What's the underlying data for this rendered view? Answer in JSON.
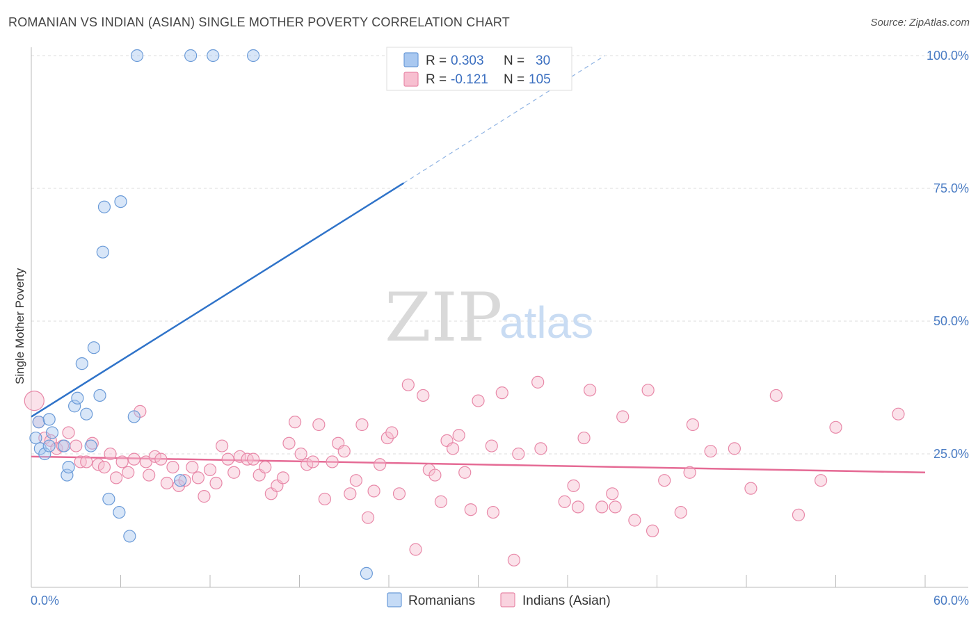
{
  "title": "ROMANIAN VS INDIAN (ASIAN) SINGLE MOTHER POVERTY CORRELATION CHART",
  "source": "Source: ZipAtlas.com",
  "watermark": {
    "zip": "ZIP",
    "atlas": "atlas"
  },
  "legend": {
    "r_label": "R =",
    "n_label": "N =",
    "rows": [
      {
        "r": "0.303",
        "n": "30",
        "color": "#a9c8f0",
        "stroke": "#6b9bd8"
      },
      {
        "r": "-0.121",
        "n": "105",
        "color": "#f7bfd0",
        "stroke": "#e888a8"
      }
    ]
  },
  "bottom_legend": [
    {
      "label": "Romanians",
      "color": "#c5dbf6",
      "stroke": "#6b9bd8"
    },
    {
      "label": "Indians (Asian)",
      "color": "#f9d3df",
      "stroke": "#e888a8"
    }
  ],
  "chart_data": {
    "type": "scatter",
    "title": "ROMANIAN VS INDIAN (ASIAN) SINGLE MOTHER POVERTY CORRELATION CHART",
    "xlabel": "",
    "ylabel": "Single Mother Poverty",
    "xlim": [
      0,
      60
    ],
    "ylim": [
      0,
      105
    ],
    "x_tick_labels": [
      "0.0%",
      "60.0%"
    ],
    "y_ticks": [
      25,
      50,
      75,
      100
    ],
    "y_tick_labels": [
      "25.0%",
      "50.0%",
      "75.0%",
      "100.0%"
    ],
    "grid": "horizontal dashed",
    "legend_position": "top-center",
    "series": [
      {
        "name": "Romanians",
        "color": "#6b9bd8",
        "fill": "#a9c8f0",
        "points": [
          [
            0.3,
            28.0
          ],
          [
            0.5,
            31.0
          ],
          [
            0.6,
            26.0
          ],
          [
            0.9,
            25.0
          ],
          [
            1.2,
            26.5
          ],
          [
            1.4,
            29.0
          ],
          [
            1.2,
            31.5
          ],
          [
            2.2,
            26.5
          ],
          [
            2.4,
            21.0
          ],
          [
            2.5,
            22.5
          ],
          [
            2.9,
            34.0
          ],
          [
            3.1,
            35.5
          ],
          [
            3.4,
            42.0
          ],
          [
            3.7,
            32.5
          ],
          [
            4.0,
            26.5
          ],
          [
            4.2,
            45.0
          ],
          [
            4.6,
            36.0
          ],
          [
            4.8,
            63.0
          ],
          [
            4.9,
            71.5
          ],
          [
            5.2,
            16.5
          ],
          [
            5.9,
            14.0
          ],
          [
            6.0,
            72.5
          ],
          [
            6.6,
            9.5
          ],
          [
            6.9,
            32.0
          ],
          [
            7.1,
            100.0
          ],
          [
            10.0,
            20.0
          ],
          [
            10.7,
            100.0
          ],
          [
            12.2,
            100.0
          ],
          [
            14.9,
            100.0
          ],
          [
            22.5,
            2.5
          ]
        ]
      },
      {
        "name": "Indians (Asian)",
        "color": "#e888a8",
        "fill": "#f7bfd0",
        "points": [
          [
            0.2,
            35.0
          ],
          [
            0.5,
            31.0
          ],
          [
            0.9,
            28.0
          ],
          [
            1.3,
            27.5
          ],
          [
            1.7,
            26.0
          ],
          [
            2.1,
            26.5
          ],
          [
            2.5,
            29.0
          ],
          [
            3.0,
            26.5
          ],
          [
            3.3,
            23.5
          ],
          [
            3.7,
            23.5
          ],
          [
            4.1,
            27.0
          ],
          [
            4.5,
            23.0
          ],
          [
            4.9,
            22.5
          ],
          [
            5.3,
            25.0
          ],
          [
            5.7,
            20.5
          ],
          [
            6.1,
            23.5
          ],
          [
            6.5,
            21.5
          ],
          [
            6.9,
            24.0
          ],
          [
            7.3,
            33.0
          ],
          [
            7.7,
            23.5
          ],
          [
            7.9,
            21.0
          ],
          [
            8.3,
            24.5
          ],
          [
            8.7,
            24.0
          ],
          [
            9.1,
            19.5
          ],
          [
            9.5,
            22.5
          ],
          [
            9.9,
            19.0
          ],
          [
            10.3,
            20.0
          ],
          [
            10.8,
            22.5
          ],
          [
            11.2,
            20.5
          ],
          [
            11.6,
            17.0
          ],
          [
            12.0,
            22.0
          ],
          [
            12.4,
            19.5
          ],
          [
            12.8,
            26.5
          ],
          [
            13.2,
            24.0
          ],
          [
            13.6,
            21.5
          ],
          [
            14.0,
            24.5
          ],
          [
            14.5,
            24.0
          ],
          [
            14.9,
            24.0
          ],
          [
            15.3,
            21.0
          ],
          [
            15.7,
            22.5
          ],
          [
            16.1,
            17.5
          ],
          [
            16.5,
            19.0
          ],
          [
            16.9,
            20.5
          ],
          [
            17.3,
            27.0
          ],
          [
            17.7,
            31.0
          ],
          [
            18.1,
            25.0
          ],
          [
            18.5,
            23.0
          ],
          [
            18.9,
            23.5
          ],
          [
            19.3,
            30.5
          ],
          [
            19.7,
            16.5
          ],
          [
            20.2,
            23.5
          ],
          [
            20.6,
            27.0
          ],
          [
            21.0,
            25.5
          ],
          [
            21.4,
            17.5
          ],
          [
            21.8,
            20.0
          ],
          [
            22.2,
            30.5
          ],
          [
            22.6,
            13.0
          ],
          [
            23.0,
            18.0
          ],
          [
            23.4,
            23.0
          ],
          [
            23.9,
            28.0
          ],
          [
            24.2,
            29.0
          ],
          [
            24.7,
            17.5
          ],
          [
            25.3,
            38.0
          ],
          [
            25.8,
            7.0
          ],
          [
            26.3,
            36.0
          ],
          [
            26.7,
            22.0
          ],
          [
            27.1,
            21.0
          ],
          [
            27.5,
            16.0
          ],
          [
            27.9,
            27.5
          ],
          [
            28.3,
            26.0
          ],
          [
            28.7,
            28.5
          ],
          [
            29.1,
            21.5
          ],
          [
            29.5,
            14.5
          ],
          [
            30.0,
            35.0
          ],
          [
            30.9,
            26.5
          ],
          [
            31.0,
            14.0
          ],
          [
            31.6,
            36.5
          ],
          [
            32.4,
            5.0
          ],
          [
            32.7,
            25.0
          ],
          [
            34.0,
            38.5
          ],
          [
            34.2,
            26.0
          ],
          [
            35.8,
            16.0
          ],
          [
            36.4,
            19.0
          ],
          [
            36.7,
            15.0
          ],
          [
            37.1,
            28.0
          ],
          [
            37.5,
            37.0
          ],
          [
            38.3,
            15.0
          ],
          [
            39.0,
            17.5
          ],
          [
            39.2,
            15.0
          ],
          [
            39.7,
            32.0
          ],
          [
            40.5,
            12.5
          ],
          [
            41.4,
            37.0
          ],
          [
            41.7,
            10.5
          ],
          [
            42.5,
            20.0
          ],
          [
            43.6,
            14.0
          ],
          [
            44.2,
            21.5
          ],
          [
            44.4,
            30.5
          ],
          [
            45.6,
            25.5
          ],
          [
            47.2,
            26.0
          ],
          [
            48.3,
            18.5
          ],
          [
            50.0,
            36.0
          ],
          [
            51.5,
            13.5
          ],
          [
            53.0,
            20.0
          ],
          [
            58.2,
            32.5
          ],
          [
            54.0,
            30.0
          ]
        ]
      }
    ],
    "trend_lines": [
      {
        "series": "Romanians",
        "x": [
          0,
          25
        ],
        "y": [
          32.0,
          76.0
        ],
        "extended_x": [
          25,
          38.5
        ],
        "extended_y": [
          76.0,
          100.0
        ]
      },
      {
        "series": "Indians (Asian)",
        "x": [
          0,
          60
        ],
        "y": [
          24.5,
          21.5
        ]
      }
    ]
  }
}
